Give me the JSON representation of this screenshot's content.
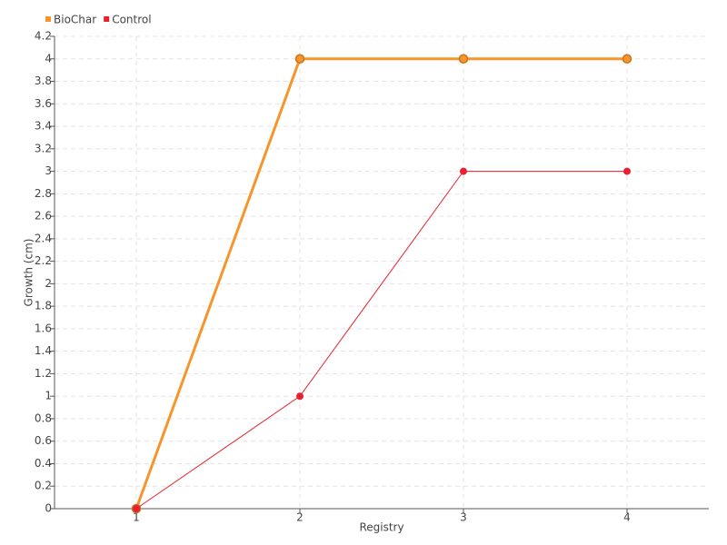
{
  "chart_data": {
    "type": "line",
    "xlabel": "Registry",
    "ylabel": "Growth (cm)",
    "categories": [
      "1",
      "2",
      "3",
      "4"
    ],
    "series": [
      {
        "name": "BioChar",
        "color": "#f7952b",
        "values": [
          0,
          4,
          4,
          4
        ]
      },
      {
        "name": "Control",
        "color": "#e8212e",
        "values": [
          0,
          1,
          3,
          3
        ]
      }
    ],
    "ylim": [
      0,
      4.2
    ],
    "yticks": [
      0,
      0.2,
      0.4,
      0.6,
      0.8,
      1,
      1.2,
      1.4,
      1.6,
      1.8,
      2,
      2.2,
      2.4,
      2.6,
      2.8,
      3,
      3.2,
      3.4,
      3.6,
      3.8,
      4,
      4.2
    ],
    "grid": true,
    "legend": "top-left"
  }
}
